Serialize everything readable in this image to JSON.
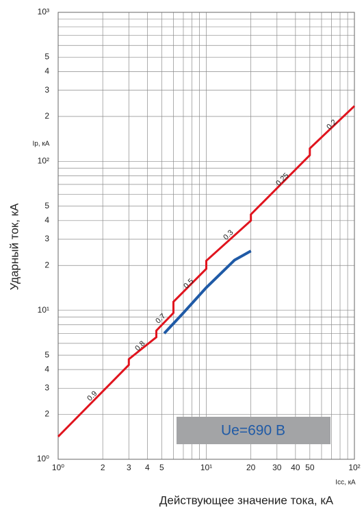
{
  "chart_data": {
    "type": "line",
    "xlabel": "Действующее значение тока, кА",
    "ylabel": "Ударный ток, кА",
    "x_unit_label": "Icc, кА",
    "y_unit_label": "Ip, кА",
    "box_label": "Ue=690 В",
    "xscale": "log",
    "yscale": "log",
    "grid": true,
    "xlim": [
      1,
      100
    ],
    "ylim": [
      1,
      1000
    ],
    "xticks": [
      {
        "value": 1,
        "label": "10⁰"
      },
      2,
      3,
      4,
      5,
      {
        "value": 10,
        "label": "10¹"
      },
      20,
      30,
      40,
      50,
      {
        "value": 100,
        "label": "10²"
      }
    ],
    "yticks": [
      {
        "value": 1,
        "label": "10⁰"
      },
      2,
      3,
      4,
      5,
      {
        "value": 10,
        "label": "10¹"
      },
      {
        "value": 20,
        "label": "2"
      },
      {
        "value": 30,
        "label": "3"
      },
      {
        "value": 40,
        "label": "4"
      },
      {
        "value": 50,
        "label": "5"
      },
      {
        "value": 100,
        "label": "10²"
      },
      {
        "value": 200,
        "label": "2"
      },
      {
        "value": 300,
        "label": "3"
      },
      {
        "value": 400,
        "label": "4"
      },
      {
        "value": 500,
        "label": "5"
      },
      {
        "value": 1000,
        "label": "10³"
      }
    ],
    "xminor": [
      6,
      7,
      8,
      9,
      60,
      70,
      80,
      90
    ],
    "yminor": [
      6,
      7,
      8,
      9,
      60,
      70,
      80,
      90,
      600,
      700,
      800,
      900
    ],
    "series": [
      {
        "color": "#e0141e",
        "x": [
          1,
          3,
          3,
          4.6,
          4.6,
          6,
          6,
          10,
          10,
          20,
          20,
          50,
          50,
          100
        ],
        "values": [
          1.42,
          4.3,
          4.7,
          6.6,
          7.3,
          9.6,
          11.4,
          19,
          21.5,
          40,
          44,
          110,
          122,
          235
        ]
      },
      {
        "color": "#1f5aa6",
        "x": [
          5.2,
          7,
          10,
          15.5,
          20
        ],
        "values": [
          7,
          9.6,
          14.2,
          21.7,
          25
        ]
      }
    ],
    "annotations": [
      "0.9",
      "0.8",
      "0.7",
      "0.5",
      "0.3",
      "0.25",
      "0.2"
    ]
  }
}
